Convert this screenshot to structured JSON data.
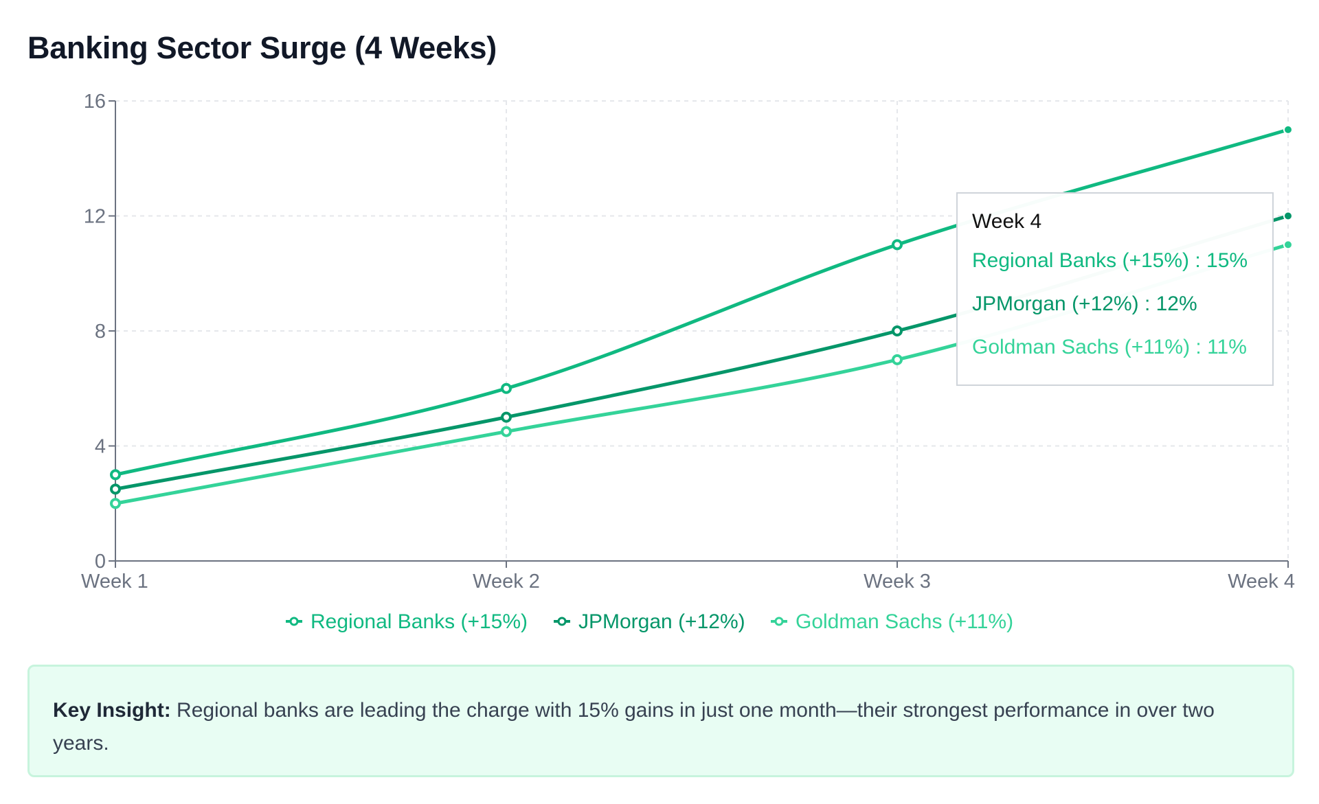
{
  "title": "Banking Sector Surge (4 Weeks)",
  "chart_data": {
    "type": "line",
    "categories": [
      "Week 1",
      "Week 2",
      "Week 3",
      "Week 4"
    ],
    "yticks": [
      "0",
      "4",
      "8",
      "12",
      "16"
    ],
    "ylim": [
      0,
      16
    ],
    "grid": true,
    "legend_position": "bottom-center",
    "series": [
      {
        "name": "Regional Banks (+15%)",
        "color": "#10b981",
        "values": [
          3,
          6,
          11,
          15
        ]
      },
      {
        "name": "JPMorgan (+12%)",
        "color": "#059669",
        "values": [
          2.5,
          5,
          8,
          12
        ]
      },
      {
        "name": "Goldman Sachs (+11%)",
        "color": "#34d399",
        "values": [
          2,
          4.5,
          7,
          11
        ]
      }
    ],
    "tooltip": {
      "title": "Week 4",
      "rows": [
        {
          "text": "Regional Banks (+15%) : 15%",
          "color": "#10b981"
        },
        {
          "text": "JPMorgan (+12%) : 12%",
          "color": "#059669"
        },
        {
          "text": "Goldman Sachs (+11%) : 11%",
          "color": "#34d399"
        }
      ]
    }
  },
  "insight": {
    "label": "Key Insight:",
    "text": " Regional banks are leading the charge with 15% gains in just one month—their strongest performance in over two years."
  }
}
